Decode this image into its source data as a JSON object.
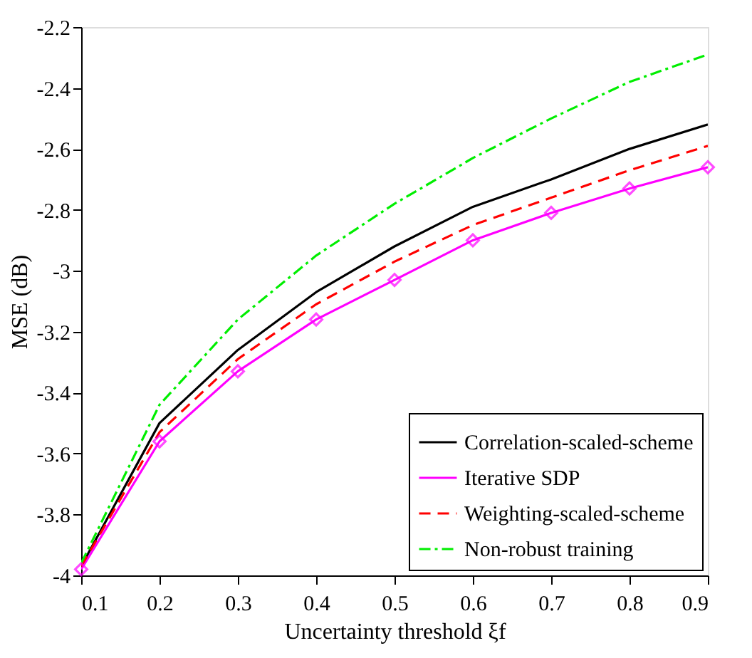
{
  "chart_data": {
    "type": "line",
    "xlabel": "Uncertainty threshold ξf",
    "ylabel": "MSE (dB)",
    "x": [
      0.1,
      0.2,
      0.3,
      0.4,
      0.5,
      0.6,
      0.7,
      0.8,
      0.9
    ],
    "series": [
      {
        "name": "Correlation-scaled-scheme",
        "color": "#000000",
        "line_style": "solid",
        "marker": "none",
        "values": [
          -3.97,
          -3.5,
          -3.26,
          -3.07,
          -2.92,
          -2.79,
          -2.7,
          -2.6,
          -2.52
        ]
      },
      {
        "name": "Iterative SDP",
        "color": "#ff00ff",
        "line_style": "solid",
        "marker": "diamond",
        "values": [
          -3.98,
          -3.56,
          -3.33,
          -3.16,
          -3.03,
          -2.9,
          -2.81,
          -2.73,
          -2.66
        ]
      },
      {
        "name": "Weighting-scaled-scheme",
        "color": "#ff0000",
        "line_style": "dashed",
        "marker": "none",
        "values": [
          -3.97,
          -3.53,
          -3.29,
          -3.11,
          -2.97,
          -2.85,
          -2.76,
          -2.67,
          -2.59
        ]
      },
      {
        "name": "Non-robust training",
        "color": "#00ee00",
        "line_style": "dashdot",
        "marker": "none",
        "values": [
          -3.96,
          -3.44,
          -3.16,
          -2.95,
          -2.78,
          -2.63,
          -2.5,
          -2.38,
          -2.29
        ]
      }
    ],
    "xlim": [
      0.1,
      0.9
    ],
    "xticks": [
      0.1,
      0.2,
      0.3,
      0.4,
      0.5,
      0.6,
      0.7,
      0.8,
      0.9
    ],
    "ylim": [
      -4,
      -2.2
    ],
    "yticks": [
      -4,
      -3.8,
      -3.6,
      -3.4,
      -3.2,
      -3,
      -2.8,
      -2.6,
      -2.4,
      -2.2
    ],
    "grid": false,
    "legend": "bottom right"
  }
}
